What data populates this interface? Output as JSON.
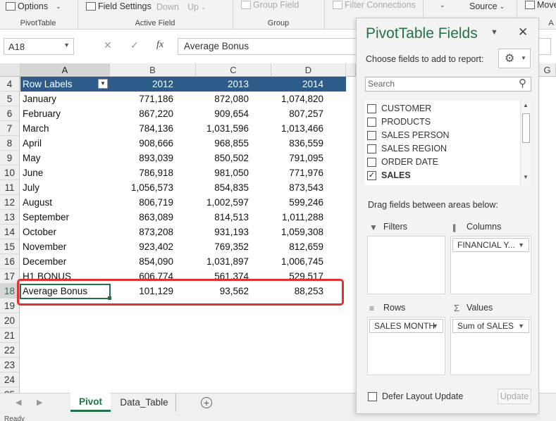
{
  "ribbon": {
    "options": "Options",
    "field_settings": "Field Settings",
    "drill_down": "Down",
    "drill_up": "Up",
    "group_field": "Group Field",
    "filter_connections": "Filter Connections",
    "source": "Source",
    "move": "Move",
    "groups": [
      "PivotTable",
      "Active Field",
      "Group",
      "A"
    ]
  },
  "formula_bar": {
    "name_box": "A18",
    "fx": "fx",
    "value": "Average Bonus"
  },
  "grid": {
    "columns": [
      "A",
      "B",
      "C",
      "D",
      "G"
    ],
    "header_row": {
      "row": "4",
      "label": "Row Labels",
      "y2012": "2012",
      "y2013": "2013",
      "y2014": "2014"
    },
    "rows": [
      {
        "n": "5",
        "label": "January",
        "b": "771,186",
        "c": "872,080",
        "d": "1,074,820"
      },
      {
        "n": "6",
        "label": "February",
        "b": "867,220",
        "c": "909,654",
        "d": "807,257"
      },
      {
        "n": "7",
        "label": "March",
        "b": "784,136",
        "c": "1,031,596",
        "d": "1,013,466"
      },
      {
        "n": "8",
        "label": "April",
        "b": "908,666",
        "c": "968,855",
        "d": "836,559"
      },
      {
        "n": "9",
        "label": "May",
        "b": "893,039",
        "c": "850,502",
        "d": "791,095"
      },
      {
        "n": "10",
        "label": "June",
        "b": "786,918",
        "c": "981,050",
        "d": "771,976"
      },
      {
        "n": "11",
        "label": "July",
        "b": "1,056,573",
        "c": "854,835",
        "d": "873,543"
      },
      {
        "n": "12",
        "label": "August",
        "b": "806,719",
        "c": "1,002,597",
        "d": "599,246"
      },
      {
        "n": "13",
        "label": "September",
        "b": "863,089",
        "c": "814,513",
        "d": "1,011,288"
      },
      {
        "n": "14",
        "label": "October",
        "b": "873,208",
        "c": "931,193",
        "d": "1,059,308"
      },
      {
        "n": "15",
        "label": "November",
        "b": "923,402",
        "c": "769,352",
        "d": "812,659"
      },
      {
        "n": "16",
        "label": "December",
        "b": "854,090",
        "c": "1,031,897",
        "d": "1,006,745"
      },
      {
        "n": "17",
        "label": "H1 BONUS",
        "b": "606,774",
        "c": "561,374",
        "d": "529,517"
      },
      {
        "n": "18",
        "label": "Average Bonus",
        "b": "101,129",
        "c": "93,562",
        "d": "88,253"
      },
      {
        "n": "19",
        "label": "",
        "b": "",
        "c": "",
        "d": ""
      },
      {
        "n": "20",
        "label": "",
        "b": "",
        "c": "",
        "d": ""
      },
      {
        "n": "21",
        "label": "",
        "b": "",
        "c": "",
        "d": ""
      },
      {
        "n": "22",
        "label": "",
        "b": "",
        "c": "",
        "d": ""
      },
      {
        "n": "23",
        "label": "",
        "b": "",
        "c": "",
        "d": ""
      },
      {
        "n": "24",
        "label": "",
        "b": "",
        "c": "",
        "d": ""
      },
      {
        "n": "25",
        "label": "",
        "b": "",
        "c": "",
        "d": ""
      }
    ]
  },
  "sheet_tabs": [
    "Pivot",
    "Data_Table"
  ],
  "add_sheet": "+",
  "status_text": "Ready",
  "pane": {
    "title": "PivotTable Fields",
    "choose_label": "Choose fields to add to report:",
    "search_placeholder": "Search",
    "fields": [
      {
        "name": "CUSTOMER",
        "checked": false
      },
      {
        "name": "PRODUCTS",
        "checked": false
      },
      {
        "name": "SALES PERSON",
        "checked": false
      },
      {
        "name": "SALES REGION",
        "checked": false
      },
      {
        "name": "ORDER DATE",
        "checked": false
      },
      {
        "name": "SALES",
        "checked": true
      }
    ],
    "drag_label": "Drag fields between areas below:",
    "filters_label": "Filters",
    "columns_label": "Columns",
    "rows_label": "Rows",
    "values_label": "Values",
    "columns_chip": "FINANCIAL Y...",
    "rows_chip": "SALES MONTH",
    "values_chip": "Sum of SALES",
    "defer_label": "Defer Layout Update",
    "update_label": "Update"
  },
  "colors": {
    "header_fill": "#2e5c8a",
    "highlight": "#e03030",
    "active_tab": "#217346"
  }
}
